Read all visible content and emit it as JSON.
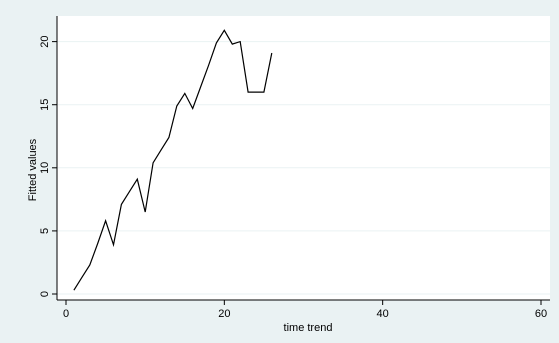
{
  "chart_data": {
    "type": "line",
    "title": "",
    "xlabel": "time trend",
    "ylabel": "Fitted values",
    "xlim": [
      0,
      60
    ],
    "ylim": [
      0,
      21
    ],
    "xticks": [
      0,
      20,
      40,
      60
    ],
    "yticks": [
      0,
      5,
      10,
      15,
      20
    ],
    "grid": "horizontal",
    "legend": "none",
    "line_color": "#000000",
    "plot_background": "#ffffff",
    "outer_background": "#eaf2f3",
    "gridline_color": "#eaf2f3",
    "series": [
      {
        "x": [
          1,
          2,
          3,
          4,
          5,
          6,
          7,
          8,
          9,
          10,
          11,
          12,
          13,
          14,
          15,
          16,
          17,
          18,
          19,
          20,
          21,
          22,
          23,
          24,
          25,
          26
        ],
        "y": [
          0.3,
          1.3,
          2.3,
          4.0,
          5.8,
          3.9,
          7.1,
          8.1,
          9.1,
          6.5,
          10.4,
          11.4,
          12.4,
          14.9,
          15.9,
          14.7,
          16.4,
          18.1,
          19.9,
          20.9,
          19.8,
          20.0,
          16.0,
          16.0,
          16.0,
          19.1
        ]
      }
    ]
  }
}
